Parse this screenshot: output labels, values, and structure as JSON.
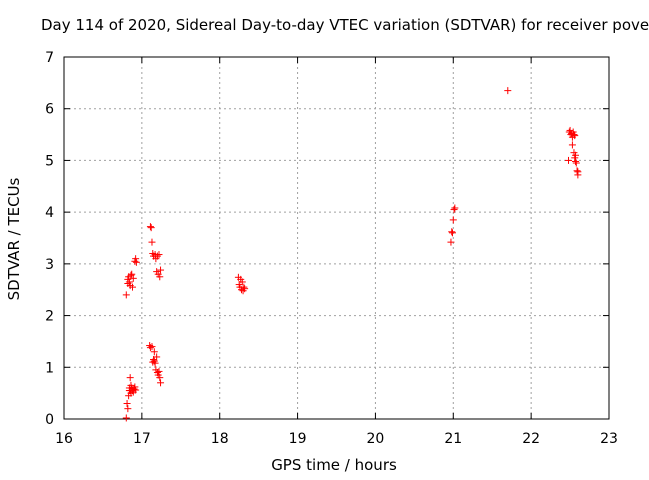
{
  "chart_data": {
    "type": "scatter",
    "title": "Day 114 of 2020, Sidereal Day-to-day VTEC variation (SDTVAR) for receiver pove",
    "xlabel": "GPS time / hours",
    "ylabel": "SDTVAR / TECUs",
    "xlim": [
      16,
      23
    ],
    "ylim": [
      0,
      7
    ],
    "xticks": [
      "16",
      "17",
      "18",
      "19",
      "20",
      "21",
      "22",
      "23"
    ],
    "yticks": [
      "0",
      "1",
      "2",
      "3",
      "4",
      "5",
      "6",
      "7"
    ],
    "grid": true,
    "marker": "+",
    "marker_color": "#ff0000",
    "series": [
      {
        "name": "SDTVAR",
        "points": [
          [
            16.8,
            0.02
          ],
          [
            16.8,
            2.4
          ],
          [
            16.81,
            0.3
          ],
          [
            16.82,
            0.2
          ],
          [
            16.82,
            2.62
          ],
          [
            16.82,
            2.7
          ],
          [
            16.83,
            0.45
          ],
          [
            16.83,
            2.75
          ],
          [
            16.84,
            0.55
          ],
          [
            16.84,
            0.6
          ],
          [
            16.84,
            2.65
          ],
          [
            16.85,
            0.8
          ],
          [
            16.85,
            0.55
          ],
          [
            16.85,
            2.58
          ],
          [
            16.86,
            0.65
          ],
          [
            16.86,
            2.78
          ],
          [
            16.86,
            0.5
          ],
          [
            16.87,
            2.8
          ],
          [
            16.87,
            0.6
          ],
          [
            16.88,
            0.55
          ],
          [
            16.88,
            2.55
          ],
          [
            16.89,
            0.52
          ],
          [
            16.89,
            2.72
          ],
          [
            16.9,
            0.58
          ],
          [
            16.91,
            0.62
          ],
          [
            16.91,
            3.05
          ],
          [
            16.92,
            3.1
          ],
          [
            16.92,
            0.56
          ],
          [
            16.93,
            3.03
          ],
          [
            17.1,
            1.42
          ],
          [
            17.11,
            1.38
          ],
          [
            17.11,
            3.72
          ],
          [
            17.12,
            3.7
          ],
          [
            17.13,
            1.4
          ],
          [
            17.13,
            3.42
          ],
          [
            17.14,
            1.1
          ],
          [
            17.14,
            3.2
          ],
          [
            17.15,
            1.15
          ],
          [
            17.15,
            3.15
          ],
          [
            17.16,
            1.3
          ],
          [
            17.16,
            1.12
          ],
          [
            17.17,
            1.08
          ],
          [
            17.17,
            3.18
          ],
          [
            17.18,
            0.95
          ],
          [
            17.18,
            3.1
          ],
          [
            17.19,
            1.2
          ],
          [
            17.19,
            2.85
          ],
          [
            17.2,
            0.9
          ],
          [
            17.2,
            3.15
          ],
          [
            17.21,
            0.85
          ],
          [
            17.21,
            2.8
          ],
          [
            17.22,
            3.18
          ],
          [
            17.22,
            0.92
          ],
          [
            17.23,
            2.75
          ],
          [
            17.23,
            0.8
          ],
          [
            17.24,
            2.88
          ],
          [
            17.24,
            0.7
          ],
          [
            18.24,
            2.74
          ],
          [
            18.25,
            2.6
          ],
          [
            18.26,
            2.55
          ],
          [
            18.27,
            2.7
          ],
          [
            18.28,
            2.5
          ],
          [
            18.29,
            2.65
          ],
          [
            18.3,
            2.48
          ],
          [
            18.31,
            2.55
          ],
          [
            18.32,
            2.52
          ],
          [
            20.97,
            3.42
          ],
          [
            20.98,
            3.62
          ],
          [
            20.99,
            3.6
          ],
          [
            21.0,
            3.85
          ],
          [
            21.01,
            4.05
          ],
          [
            21.02,
            4.08
          ],
          [
            21.7,
            6.35
          ],
          [
            22.48,
            5.0
          ],
          [
            22.49,
            5.55
          ],
          [
            22.5,
            5.58
          ],
          [
            22.51,
            5.5
          ],
          [
            22.52,
            5.52
          ],
          [
            22.53,
            5.45
          ],
          [
            22.53,
            5.3
          ],
          [
            22.54,
            5.55
          ],
          [
            22.55,
            5.5
          ],
          [
            22.55,
            5.15
          ],
          [
            22.56,
            5.48
          ],
          [
            22.56,
            5.05
          ],
          [
            22.57,
            4.98
          ],
          [
            22.57,
            5.1
          ],
          [
            22.58,
            4.95
          ],
          [
            22.59,
            4.8
          ],
          [
            22.6,
            4.72
          ],
          [
            22.6,
            4.78
          ]
        ]
      }
    ]
  }
}
